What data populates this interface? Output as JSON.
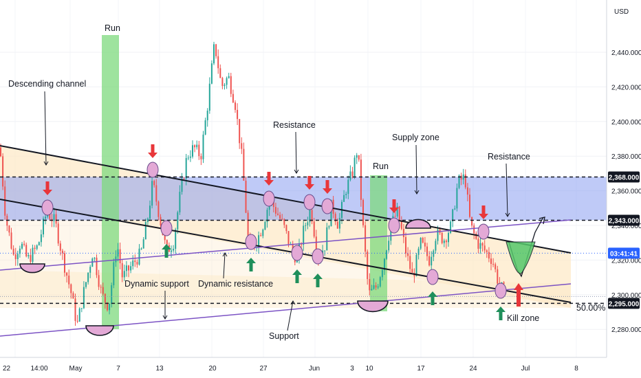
{
  "chart_data": {
    "type": "candlestick",
    "currency": "USD",
    "y_ticks": [
      "2,440.000",
      "2,420.000",
      "2,400.000",
      "2,380.000",
      "2,360.000",
      "2,340.000",
      "2,320.000",
      "2,300.000",
      "2,280.000"
    ],
    "y_tick_values": [
      2440,
      2420,
      2400,
      2380,
      2360,
      2340,
      2320,
      2300,
      2280
    ],
    "x_ticks": [
      "22",
      "14:00",
      "May",
      "7",
      "13",
      "20",
      "27",
      "Jun",
      "3",
      "10",
      "17",
      "24",
      "Jul",
      "8"
    ],
    "ylim": [
      2268,
      2480
    ],
    "price_levels": [
      {
        "label": "2,368.000",
        "value": 2368,
        "style": "dark"
      },
      {
        "label": "2,343.000",
        "value": 2343,
        "style": "dark"
      },
      {
        "label": "2,295.000",
        "value": 2295,
        "style": "dark"
      },
      {
        "label": "03:41:41",
        "value": 2324,
        "style": "blue"
      }
    ],
    "fib_label": "50.00%",
    "annotations": {
      "descending_channel": "Descending channel",
      "run1": "Run",
      "run2": "Run",
      "resistance1": "Resistance",
      "resistance2": "Resistance",
      "supply_zone": "Supply zone",
      "dynamic_support": "Dynamic support",
      "dynamic_resistance": "Dynamic resistance",
      "support": "Support",
      "kill_zone": "Kill zone"
    },
    "colors": {
      "up": "#26a69a",
      "down": "#ef5350",
      "supply_zone": "#8a9ef0",
      "channel_fill": "#fde9c8",
      "run": "#7ed97e",
      "purple_line": "#7b52c4",
      "arrow_red": "#e8363a",
      "arrow_green": "#1f8f5b",
      "circle": "#e3a9d6"
    }
  }
}
